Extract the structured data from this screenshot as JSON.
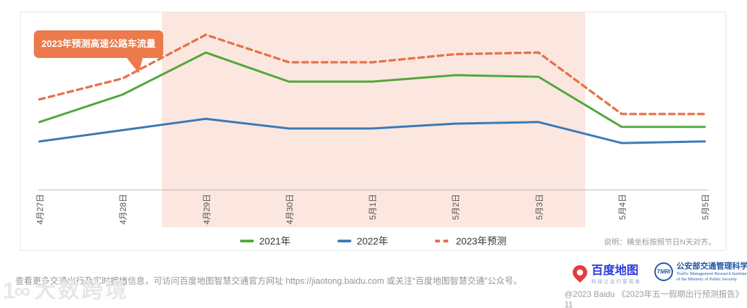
{
  "callout": {
    "label": "2023年预测高速公路车流量"
  },
  "chart_data": {
    "type": "line",
    "title": "",
    "xlabel": "",
    "ylabel": "",
    "x": [
      "4月27日",
      "4月28日",
      "4月29日",
      "4月30日",
      "5月1日",
      "5月2日",
      "5月3日",
      "5月4日",
      "5月5日"
    ],
    "series": [
      {
        "name": "2021年",
        "color": "#52a73c",
        "style": "solid",
        "values": [
          42,
          59,
          85,
          67,
          67,
          71,
          70,
          39,
          39
        ]
      },
      {
        "name": "2022年",
        "color": "#3d7ab5",
        "style": "solid",
        "values": [
          30,
          37,
          44,
          38,
          38,
          41,
          42,
          29,
          30
        ]
      },
      {
        "name": "2023年预测",
        "color": "#e5714b",
        "style": "dashed",
        "values": [
          56,
          69,
          96,
          79,
          79,
          84,
          85,
          47,
          47
        ]
      }
    ],
    "ylim": [
      0,
      100
    ],
    "grid": false,
    "legend_position": "bottom",
    "highlight_region": {
      "from": "4月29日",
      "to": "5月3日",
      "color": "#fbe7df"
    },
    "note": "说明：横坐标按照节日N天对齐。"
  },
  "footer": {
    "info": "查看更多交通出行及实时拥堵信息，可访问百度地图智慧交通官方网址 https://jiaotong.baidu.com 或关注“百度地图智慧交通”公众号。",
    "copyright": "@2023 Baidu 《2023年五一假期出行预测报告》11"
  },
  "logos": {
    "baidu": {
      "title": "百度地图",
      "tagline": "科技让出行更简单"
    },
    "tmri": {
      "abbr": "TMRI",
      "title": "公安部交通管理科学研究所",
      "subtitle_line1": "Traffic Management Research Institute",
      "subtitle_line2": "of the Ministry of Public Security"
    }
  },
  "watermark": {
    "icon": "1∞",
    "text": "大数跨境"
  },
  "colors": {
    "callout_bg": "#ec7a4c",
    "axis": "#b5b5b5",
    "baidu_blue": "#2f3cde",
    "baidu_red": "#e23c3f",
    "tmri_blue": "#1f55a5"
  }
}
